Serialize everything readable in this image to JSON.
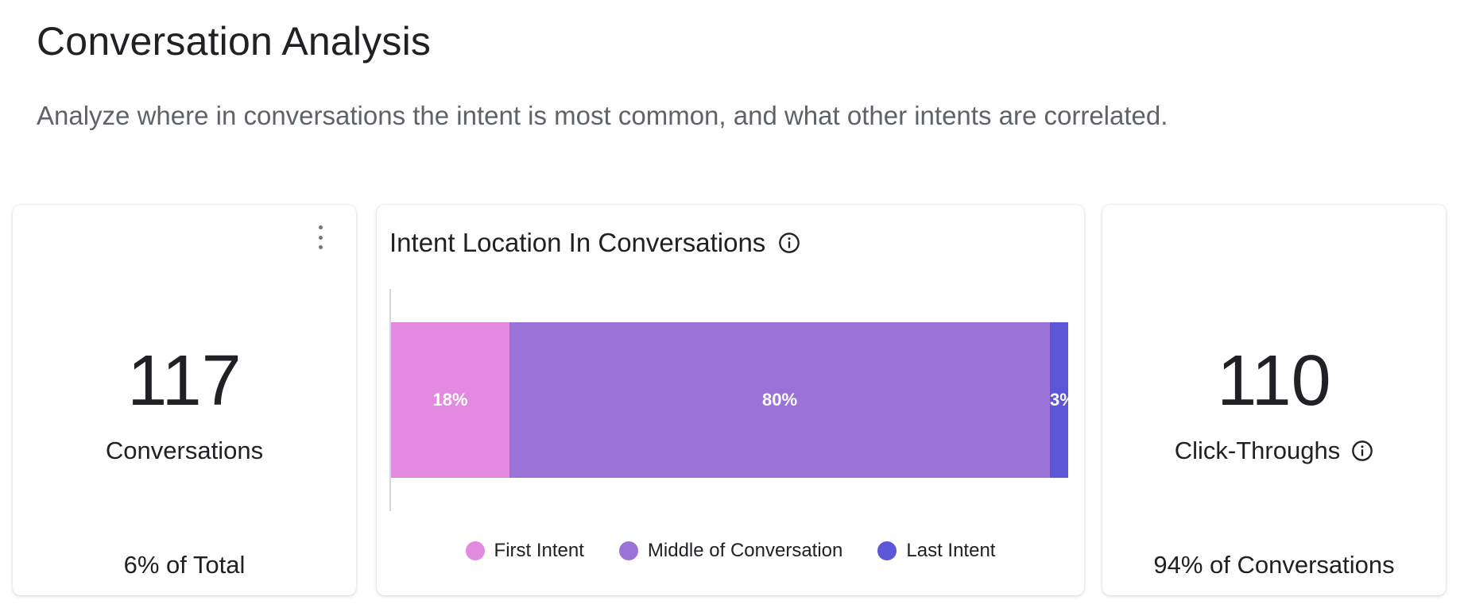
{
  "header": {
    "title": "Conversation Analysis",
    "subtitle": "Analyze where in conversations the intent is most common, and what other intents are correlated."
  },
  "conversations_card": {
    "value": "117",
    "label": "Conversations",
    "footer": "6% of Total",
    "menu_icon": "more-vert-icon"
  },
  "intent_location_card": {
    "title": "Intent Location In Conversations",
    "info_icon": "info-icon"
  },
  "click_throughs_card": {
    "value": "110",
    "label": "Click-Throughs",
    "footer": "94% of Conversations",
    "info_icon": "info-icon"
  },
  "chart_data": {
    "type": "bar",
    "orientation": "horizontal",
    "stacked": true,
    "title": "Intent Location In Conversations",
    "categories": [
      ""
    ],
    "series": [
      {
        "name": "First Intent",
        "values": [
          17.5
        ],
        "label": "18%",
        "color": "#e289e0"
      },
      {
        "name": "Middle of Conversation",
        "values": [
          79.8
        ],
        "label": "80%",
        "color": "#9b72d8"
      },
      {
        "name": "Last Intent",
        "values": [
          2.7
        ],
        "label": "3%",
        "color": "#5b57d6"
      }
    ],
    "xlim": [
      0,
      100
    ],
    "legend_position": "bottom",
    "grid": false
  }
}
